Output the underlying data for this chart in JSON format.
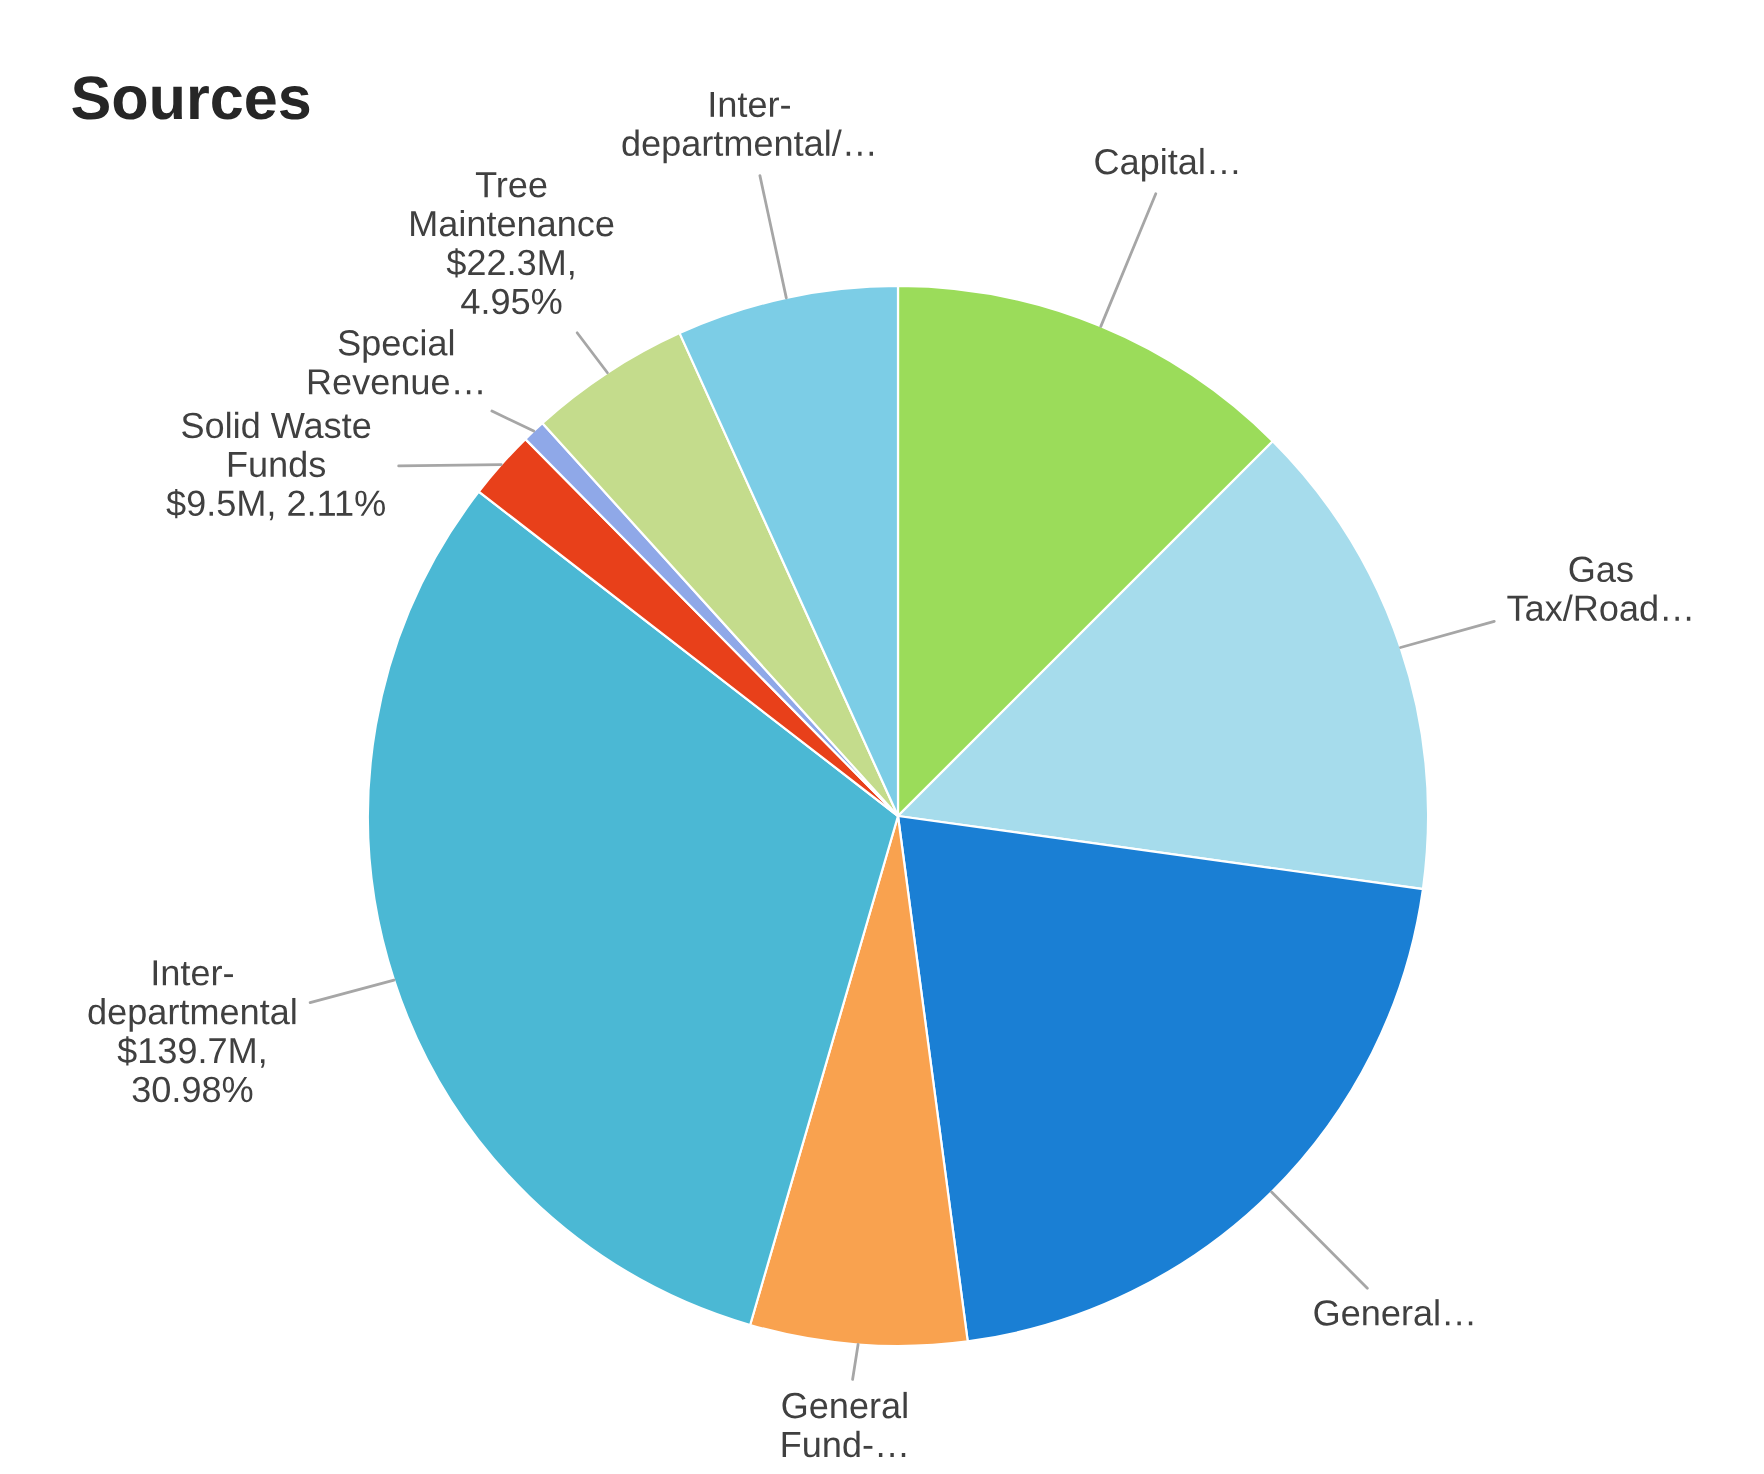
{
  "chart_data": {
    "type": "pie",
    "title": "Sources",
    "categories": [
      "Capital…",
      "Gas\nTax/Road…",
      "General…",
      "General\nFund-…",
      "Inter-\ndepartmental",
      "Solid Waste\nFunds",
      "Special\nRevenue…",
      "Tree\nMaintenance",
      "Inter-\ndepartmental/…"
    ],
    "values": [
      12.5,
      14.7,
      20.7,
      6.6,
      30.98,
      2.11,
      0.7,
      4.95,
      6.76
    ],
    "value_labels": [
      null,
      null,
      null,
      null,
      "$139.7M,\n30.98%",
      "$9.5M, 2.11%",
      null,
      "$22.3M,\n4.95%",
      null
    ],
    "colors": [
      "#9bdc5a",
      "#a6dcec",
      "#1a7fd4",
      "#f9a24f",
      "#4bb8d4",
      "#e8401a",
      "#8fa8e8",
      "#c4dc8c",
      "#7ccde6"
    ],
    "legend": false
  }
}
